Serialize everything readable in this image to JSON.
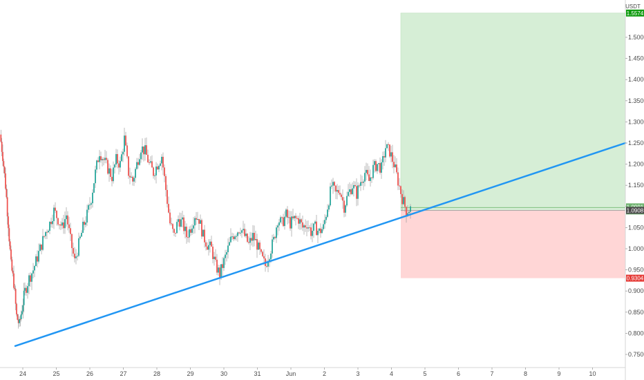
{
  "chart_data": {
    "type": "candlestick",
    "currency": "USDT",
    "ylim": [
      0.72,
      1.58
    ],
    "y_ticks": [
      "1.5000",
      "1.4500",
      "1.4000",
      "1.3500",
      "1.3000",
      "1.2500",
      "1.2000",
      "1.1500",
      "1.1000",
      "1.0500",
      "1.0000",
      "0.9500",
      "0.9000",
      "0.8500",
      "0.8000",
      "0.7500"
    ],
    "x_ticks": [
      "24",
      "25",
      "26",
      "27",
      "28",
      "29",
      "30",
      "31",
      "Jun",
      "2",
      "3",
      "4",
      "5",
      "6",
      "7",
      "8",
      "9",
      "10"
    ],
    "price_path": [
      [
        0,
        1.27
      ],
      [
        4,
        1.22
      ],
      [
        8,
        1.15
      ],
      [
        12,
        1.06
      ],
      [
        16,
        0.96
      ],
      [
        20,
        0.92
      ],
      [
        24,
        0.84
      ],
      [
        28,
        0.82
      ],
      [
        32,
        0.86
      ],
      [
        36,
        0.9
      ],
      [
        42,
        0.93
      ],
      [
        48,
        0.95
      ],
      [
        54,
        0.98
      ],
      [
        60,
        1.01
      ],
      [
        66,
        1.04
      ],
      [
        72,
        1.06
      ],
      [
        78,
        1.09
      ],
      [
        84,
        1.07
      ],
      [
        90,
        1.05
      ],
      [
        96,
        1.08
      ],
      [
        102,
        1.02
      ],
      [
        108,
        0.97
      ],
      [
        114,
        1.01
      ],
      [
        120,
        1.05
      ],
      [
        126,
        1.08
      ],
      [
        132,
        1.12
      ],
      [
        138,
        1.18
      ],
      [
        144,
        1.23
      ],
      [
        150,
        1.21
      ],
      [
        156,
        1.19
      ],
      [
        162,
        1.17
      ],
      [
        168,
        1.21
      ],
      [
        174,
        1.2
      ],
      [
        180,
        1.26
      ],
      [
        186,
        1.18
      ],
      [
        192,
        1.16
      ],
      [
        198,
        1.2
      ],
      [
        204,
        1.24
      ],
      [
        210,
        1.23
      ],
      [
        216,
        1.2
      ],
      [
        222,
        1.18
      ],
      [
        228,
        1.2
      ],
      [
        234,
        1.22
      ],
      [
        240,
        1.14
      ],
      [
        246,
        1.06
      ],
      [
        252,
        1.03
      ],
      [
        258,
        1.07
      ],
      [
        264,
        1.06
      ],
      [
        270,
        1.03
      ],
      [
        276,
        1.05
      ],
      [
        282,
        1.08
      ],
      [
        288,
        1.07
      ],
      [
        294,
        1.03
      ],
      [
        300,
        1.01
      ],
      [
        306,
        1.0
      ],
      [
        312,
        0.96
      ],
      [
        318,
        0.94
      ],
      [
        324,
        0.97
      ],
      [
        330,
        1.0
      ],
      [
        336,
        1.03
      ],
      [
        342,
        1.04
      ],
      [
        348,
        1.05
      ],
      [
        354,
        1.03
      ],
      [
        360,
        1.01
      ],
      [
        366,
        1.03
      ],
      [
        372,
        1.01
      ],
      [
        378,
        0.98
      ],
      [
        384,
        0.96
      ],
      [
        390,
        0.99
      ],
      [
        396,
        1.02
      ],
      [
        402,
        1.07
      ],
      [
        408,
        1.06
      ],
      [
        414,
        1.08
      ],
      [
        420,
        1.06
      ],
      [
        426,
        1.07
      ],
      [
        432,
        1.07
      ],
      [
        438,
        1.05
      ],
      [
        444,
        1.06
      ],
      [
        450,
        1.04
      ],
      [
        456,
        1.05
      ],
      [
        462,
        1.04
      ],
      [
        468,
        1.05
      ],
      [
        474,
        1.1
      ],
      [
        480,
        1.15
      ],
      [
        486,
        1.13
      ],
      [
        492,
        1.14
      ],
      [
        498,
        1.1
      ],
      [
        504,
        1.13
      ],
      [
        510,
        1.15
      ],
      [
        516,
        1.13
      ],
      [
        522,
        1.16
      ],
      [
        528,
        1.18
      ],
      [
        534,
        1.16
      ],
      [
        540,
        1.19
      ],
      [
        546,
        1.2
      ],
      [
        552,
        1.19
      ],
      [
        558,
        1.24
      ],
      [
        564,
        1.23
      ],
      [
        570,
        1.2
      ],
      [
        576,
        1.16
      ],
      [
        582,
        1.12
      ],
      [
        588,
        1.09
      ],
      [
        594,
        1.095
      ]
    ],
    "trendline": {
      "start": [
        22,
        0.77
      ],
      "end": [
        905,
        1.25
      ],
      "color": "#2196f3"
    },
    "position": {
      "x_start": 580,
      "x_end": 905,
      "entry": 1.0908,
      "target": 1.5574,
      "stop": 0.9304,
      "profit_color": "#d6eed6",
      "loss_color": "#ffd6d6"
    },
    "price_badges": [
      {
        "value": 1.5574,
        "label": "1.5574",
        "color": "#26a69a",
        "bg": "#119c11"
      },
      {
        "value": 1.0991,
        "label": "1.0991",
        "sub": "39:19",
        "bg": "#6fb36f"
      },
      {
        "value": 1.0908,
        "label": "1.0908",
        "bg": "#4a4a4a"
      },
      {
        "value": 0.9304,
        "label": "0.9304",
        "bg": "#e53935"
      }
    ],
    "up_color": "#26a69a",
    "down_color": "#ef5350"
  }
}
